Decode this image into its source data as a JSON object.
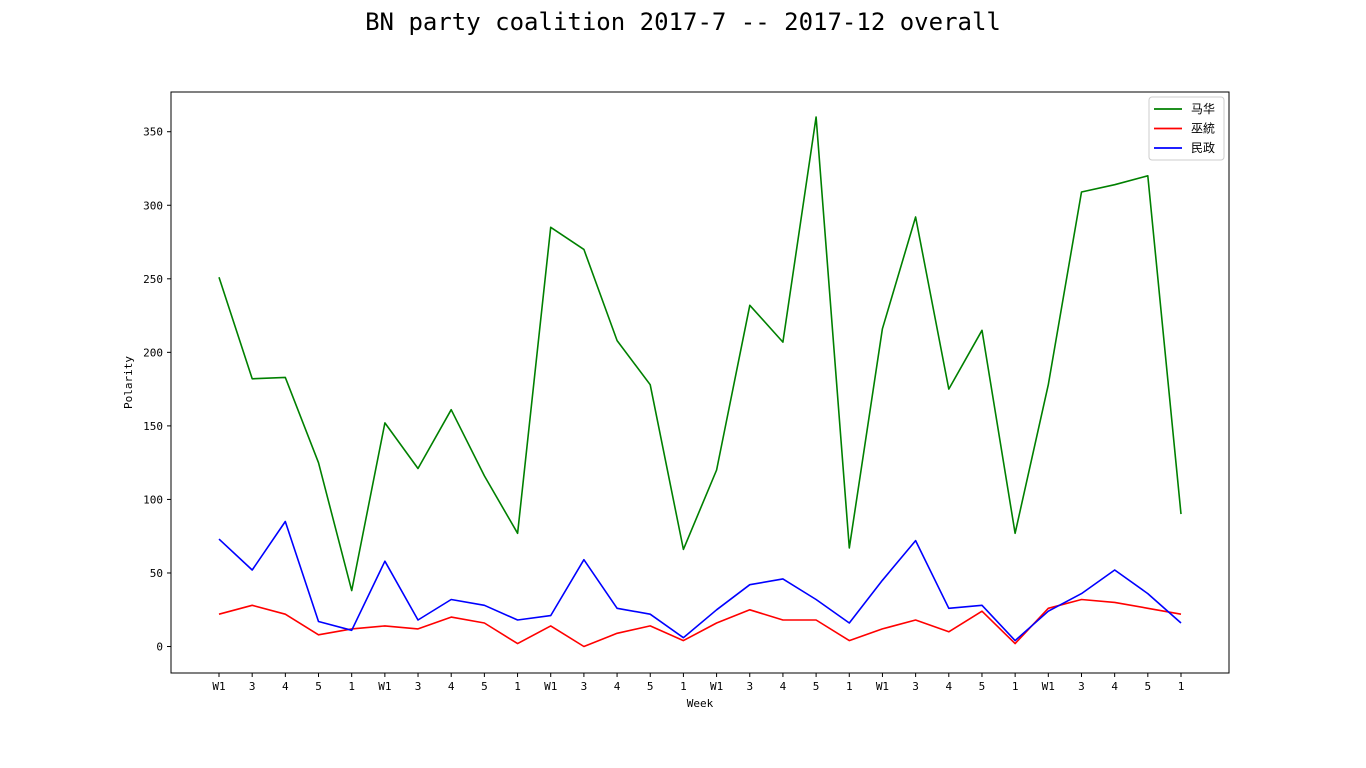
{
  "chart_data": {
    "type": "line",
    "title": "BN party coalition 2017-7 -- 2017-12 overall",
    "xlabel": "Week",
    "ylabel": "Polarity",
    "ylim": [
      -18,
      377
    ],
    "yticks": [
      0,
      50,
      100,
      150,
      200,
      250,
      300,
      350
    ],
    "categories": [
      "W1",
      "3",
      "4",
      "5",
      "1",
      "W1",
      "3",
      "4",
      "5",
      "1",
      "W1",
      "3",
      "4",
      "5",
      "1",
      "W1",
      "3",
      "4",
      "5",
      "1",
      "W1",
      "3",
      "4",
      "5",
      "1",
      "W1",
      "3",
      "4",
      "5",
      "1"
    ],
    "legend_position": "top-right",
    "grid": false,
    "series": [
      {
        "name": "马华",
        "color": "#008000",
        "values": [
          251,
          182,
          183,
          125,
          38,
          152,
          121,
          161,
          116,
          77,
          285,
          270,
          208,
          178,
          66,
          120,
          232,
          207,
          360,
          67,
          216,
          292,
          175,
          215,
          77,
          178,
          309,
          314,
          320,
          90
        ]
      },
      {
        "name": "巫統",
        "color": "#ff0000",
        "values": [
          22,
          28,
          22,
          8,
          12,
          14,
          12,
          20,
          16,
          2,
          14,
          0,
          9,
          14,
          4,
          16,
          25,
          18,
          18,
          4,
          12,
          18,
          10,
          24,
          2,
          26,
          32,
          30,
          26,
          22
        ]
      },
      {
        "name": "民政",
        "color": "#0000ff",
        "values": [
          73,
          52,
          85,
          17,
          11,
          58,
          18,
          32,
          28,
          18,
          21,
          59,
          26,
          22,
          6,
          25,
          42,
          46,
          32,
          16,
          45,
          72,
          26,
          28,
          4,
          24,
          36,
          52,
          36,
          16
        ]
      }
    ]
  }
}
